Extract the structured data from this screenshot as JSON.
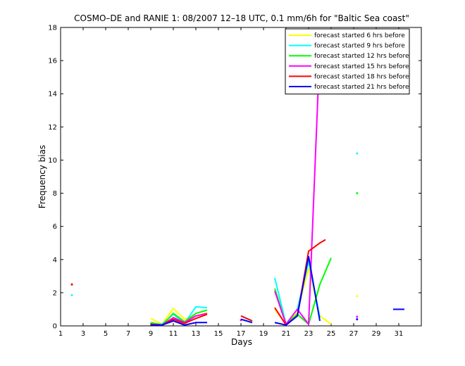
{
  "chart_data": {
    "type": "line",
    "title": "COSMO–DE and RANIE 1: 08/2007 12–18 UTC, 0.1 mm/6h for \"Baltic Sea coast\"",
    "xlabel": "Days",
    "ylabel": "Frequency bias",
    "xlim": [
      1,
      33
    ],
    "ylim": [
      0,
      18
    ],
    "xticks": [
      1,
      3,
      5,
      7,
      9,
      11,
      13,
      15,
      17,
      19,
      21,
      23,
      25,
      27,
      29,
      31
    ],
    "yticks": [
      0,
      2,
      4,
      6,
      8,
      10,
      12,
      14,
      16,
      18
    ],
    "grid": false,
    "legend_position": "top-right",
    "series": [
      {
        "name": "forecast started 6 hrs before",
        "color": "#ffff00",
        "points": [
          [
            9,
            0.45
          ],
          [
            10,
            0.1
          ],
          [
            11,
            1.05
          ],
          [
            12,
            0.4
          ],
          [
            13,
            0.6
          ],
          [
            14,
            0.8
          ],
          [
            20,
            1.0
          ],
          [
            21,
            0.1
          ],
          [
            22,
            0.8
          ],
          [
            23,
            3.5
          ],
          [
            24,
            0.6
          ],
          [
            25,
            0.1
          ],
          [
            27.3,
            1.8
          ]
        ]
      },
      {
        "name": "forecast started 9 hrs before",
        "color": "#00ffff",
        "points": [
          [
            2,
            1.85
          ],
          [
            9,
            0.15
          ],
          [
            10,
            0.1
          ],
          [
            11,
            0.7
          ],
          [
            12,
            0.15
          ],
          [
            13,
            1.15
          ],
          [
            14,
            1.1
          ],
          [
            17,
            0.6
          ],
          [
            18,
            0.3
          ],
          [
            20,
            2.9
          ],
          [
            21,
            0.1
          ],
          [
            22,
            1.0
          ],
          [
            23,
            3.9
          ],
          [
            24,
            0.5
          ],
          [
            27.3,
            10.4
          ]
        ]
      },
      {
        "name": "forecast started 12 hrs before",
        "color": "#00ff00",
        "points": [
          [
            9,
            0.2
          ],
          [
            10,
            0.05
          ],
          [
            11,
            0.75
          ],
          [
            12,
            0.25
          ],
          [
            13,
            0.75
          ],
          [
            14,
            0.95
          ],
          [
            17,
            0.4
          ],
          [
            18,
            0.2
          ],
          [
            20,
            2.25
          ],
          [
            21,
            0.1
          ],
          [
            22,
            0.7
          ],
          [
            23,
            0.1
          ],
          [
            24,
            2.5
          ],
          [
            25,
            4.1
          ],
          [
            27.3,
            8.0
          ]
        ]
      },
      {
        "name": "forecast started 15 hrs before",
        "color": "#ff00ff",
        "points": [
          [
            2,
            2.5
          ],
          [
            9,
            0.1
          ],
          [
            10,
            0.05
          ],
          [
            11,
            0.5
          ],
          [
            12,
            0.2
          ],
          [
            13,
            0.6
          ],
          [
            14,
            0.75
          ],
          [
            17,
            0.35
          ],
          [
            20,
            2.1
          ],
          [
            21,
            0.1
          ],
          [
            22,
            1.0
          ],
          [
            23,
            0.1
          ],
          [
            24,
            16.8
          ],
          [
            27.3,
            0.55
          ]
        ]
      },
      {
        "name": "forecast started 18 hrs before",
        "color": "#ff0000",
        "points": [
          [
            2,
            2.5
          ],
          [
            9,
            0.1
          ],
          [
            10,
            0.05
          ],
          [
            11,
            0.4
          ],
          [
            12,
            0.15
          ],
          [
            13,
            0.45
          ],
          [
            14,
            0.7
          ],
          [
            17,
            0.6
          ],
          [
            18,
            0.3
          ],
          [
            20,
            1.1
          ],
          [
            21,
            0.05
          ],
          [
            22,
            0.6
          ],
          [
            23,
            4.5
          ],
          [
            24,
            5.0
          ],
          [
            24.5,
            5.2
          ]
        ]
      },
      {
        "name": "forecast started 21 hrs before",
        "color": "#0000ff",
        "points": [
          [
            9,
            0.05
          ],
          [
            10,
            0.05
          ],
          [
            11,
            0.3
          ],
          [
            12,
            0.05
          ],
          [
            13,
            0.2
          ],
          [
            14,
            0.2
          ],
          [
            17,
            0.4
          ],
          [
            18,
            0.2
          ],
          [
            20,
            0.2
          ],
          [
            21,
            0.05
          ],
          [
            22,
            0.6
          ],
          [
            23,
            4.2
          ],
          [
            24,
            0.3
          ],
          [
            27.3,
            0.4
          ],
          [
            30.5,
            1.0
          ],
          [
            31.5,
            1.0
          ]
        ]
      }
    ]
  }
}
